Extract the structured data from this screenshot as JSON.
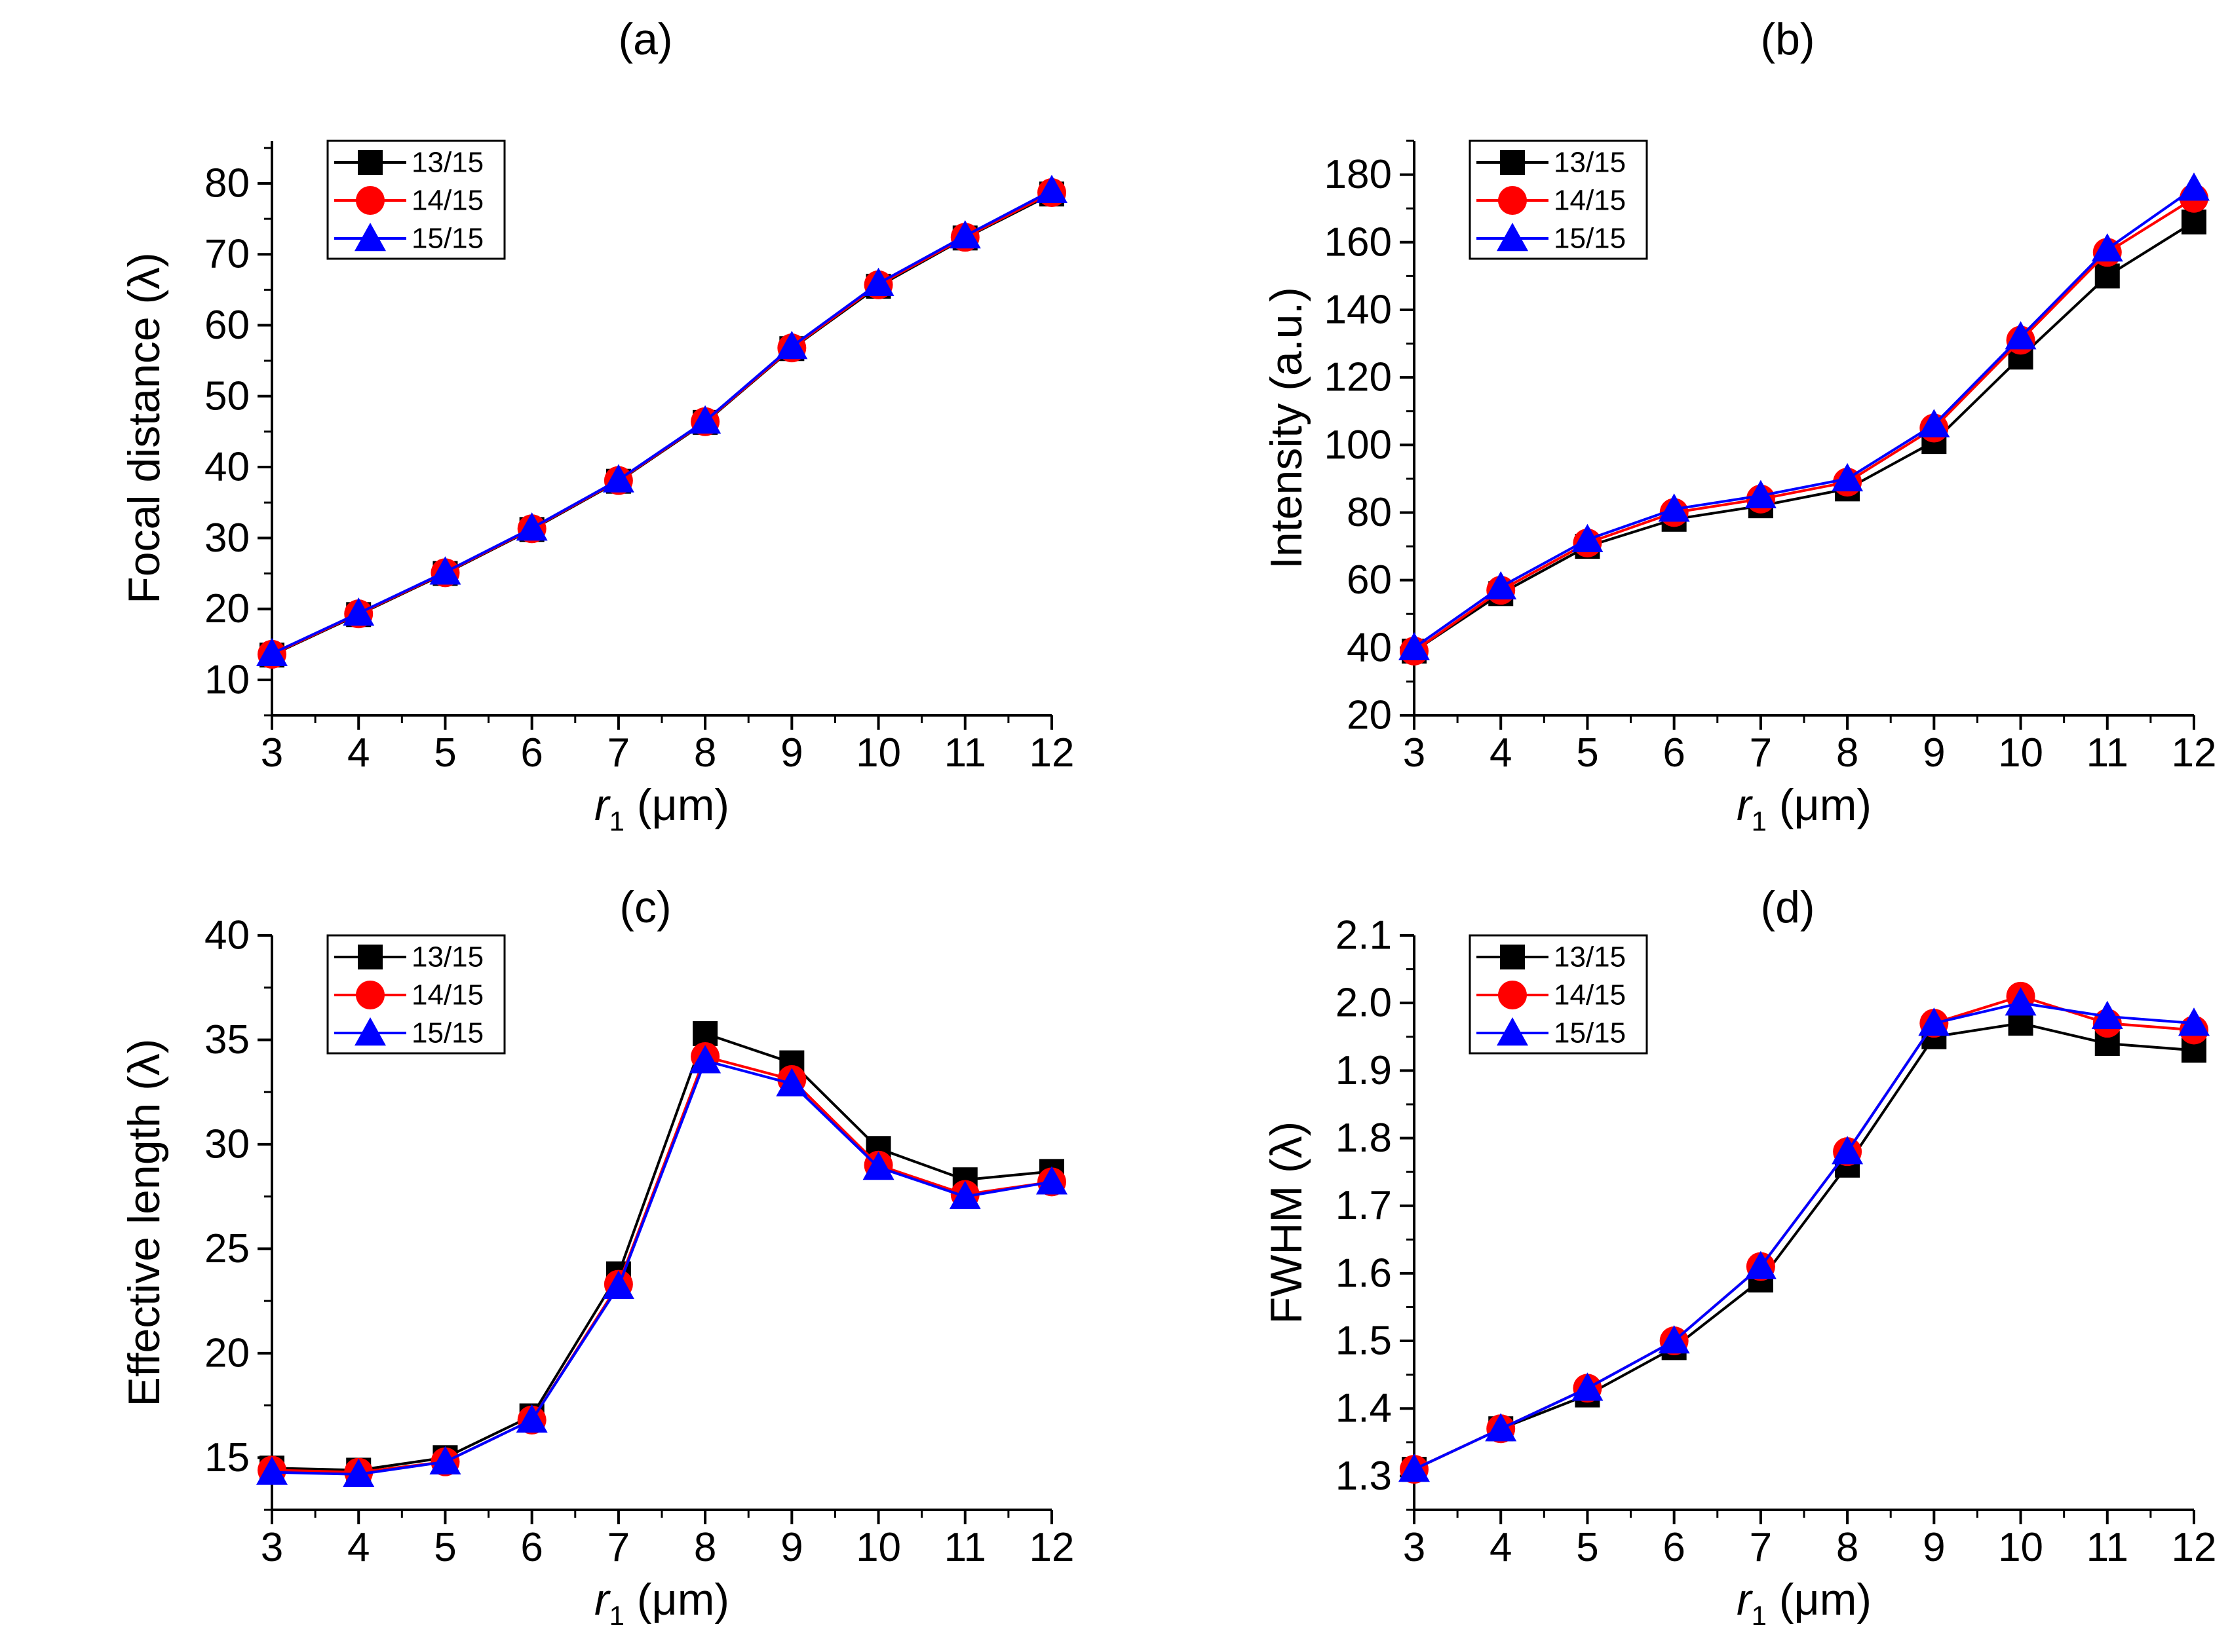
{
  "chart_data": [
    {
      "panel": "(a)",
      "type": "line",
      "xlabel": {
        "var": "r",
        "sub": "1",
        "unit": " (μm)"
      },
      "ylabel": "Focal distance (λ)",
      "xlim": [
        3,
        12
      ],
      "ylim": [
        5,
        86
      ],
      "xticks": [
        3,
        4,
        5,
        6,
        7,
        8,
        9,
        10,
        11,
        12
      ],
      "yticks": [
        10,
        20,
        30,
        40,
        50,
        60,
        70,
        80
      ],
      "grid": false,
      "legend_position": "top-left",
      "x": [
        3,
        4,
        5,
        6,
        7,
        8,
        9,
        10,
        11,
        12
      ],
      "series": [
        {
          "name": "13/15",
          "marker": "square",
          "values": [
            13.5,
            19.2,
            25.0,
            31.2,
            38.0,
            46.3,
            56.7,
            65.5,
            72.3,
            78.5
          ]
        },
        {
          "name": "14/15",
          "marker": "circle",
          "values": [
            13.6,
            19.3,
            25.1,
            31.3,
            38.1,
            46.4,
            56.8,
            65.7,
            72.4,
            78.7
          ]
        },
        {
          "name": "15/15",
          "marker": "triangle",
          "values": [
            13.7,
            19.4,
            25.2,
            31.4,
            38.2,
            46.5,
            57.0,
            65.9,
            72.6,
            79.0
          ]
        }
      ]
    },
    {
      "panel": "(b)",
      "type": "line",
      "xlabel": {
        "var": "r",
        "sub": "1",
        "unit": " (μm)"
      },
      "ylabel": "Intensity (a.u.)",
      "xlim": [
        3,
        12
      ],
      "ylim": [
        20,
        190
      ],
      "xticks": [
        3,
        4,
        5,
        6,
        7,
        8,
        9,
        10,
        11,
        12
      ],
      "yticks": [
        20,
        40,
        60,
        80,
        100,
        120,
        140,
        160,
        180
      ],
      "grid": false,
      "legend_position": "top-left",
      "x": [
        3,
        4,
        5,
        6,
        7,
        8,
        9,
        10,
        11,
        12
      ],
      "series": [
        {
          "name": "13/15",
          "marker": "square",
          "values": [
            39,
            56,
            70,
            78,
            82,
            87,
            101,
            126,
            150,
            166
          ]
        },
        {
          "name": "14/15",
          "marker": "circle",
          "values": [
            39,
            57,
            71,
            80,
            84,
            89,
            105,
            131,
            157,
            173
          ]
        },
        {
          "name": "15/15",
          "marker": "triangle",
          "values": [
            40,
            58,
            72,
            81,
            85,
            90,
            106,
            132,
            158,
            176
          ]
        }
      ]
    },
    {
      "panel": "(c)",
      "type": "line",
      "xlabel": {
        "var": "r",
        "sub": "1",
        "unit": " (μm)"
      },
      "ylabel": "Effective length (λ)",
      "xlim": [
        3,
        12
      ],
      "ylim": [
        12.5,
        40
      ],
      "xticks": [
        3,
        4,
        5,
        6,
        7,
        8,
        9,
        10,
        11,
        12
      ],
      "yticks": [
        15,
        20,
        25,
        30,
        35,
        40
      ],
      "grid": false,
      "legend_position": "top-left",
      "x": [
        3,
        4,
        5,
        6,
        7,
        8,
        9,
        10,
        11,
        12
      ],
      "series": [
        {
          "name": "13/15",
          "marker": "square",
          "values": [
            14.5,
            14.4,
            15.0,
            17.0,
            23.8,
            35.3,
            33.9,
            29.8,
            28.3,
            28.7
          ]
        },
        {
          "name": "14/15",
          "marker": "circle",
          "values": [
            14.4,
            14.3,
            14.8,
            16.8,
            23.3,
            34.2,
            33.1,
            29.0,
            27.6,
            28.2
          ]
        },
        {
          "name": "15/15",
          "marker": "triangle",
          "values": [
            14.3,
            14.2,
            14.8,
            16.8,
            23.2,
            34.0,
            32.9,
            28.9,
            27.5,
            28.2
          ]
        }
      ]
    },
    {
      "panel": "(d)",
      "type": "line",
      "xlabel": {
        "var": "r",
        "sub": "1",
        "unit": " (μm)"
      },
      "ylabel": "FWHM (λ)",
      "xlim": [
        3,
        12
      ],
      "ylim": [
        1.25,
        2.1
      ],
      "xticks": [
        3,
        4,
        5,
        6,
        7,
        8,
        9,
        10,
        11,
        12
      ],
      "yticks": [
        "1.3",
        "1.4",
        "1.5",
        "1.6",
        "1.7",
        "1.8",
        "1.9",
        "2.0",
        "2.1"
      ],
      "grid": false,
      "legend_position": "top-left",
      "x": [
        3,
        4,
        5,
        6,
        7,
        8,
        9,
        10,
        11,
        12
      ],
      "series": [
        {
          "name": "13/15",
          "marker": "square",
          "values": [
            1.31,
            1.37,
            1.42,
            1.49,
            1.59,
            1.76,
            1.95,
            1.97,
            1.94,
            1.93
          ]
        },
        {
          "name": "14/15",
          "marker": "circle",
          "values": [
            1.31,
            1.37,
            1.43,
            1.5,
            1.61,
            1.78,
            1.97,
            2.01,
            1.97,
            1.96
          ]
        },
        {
          "name": "15/15",
          "marker": "triangle",
          "values": [
            1.31,
            1.37,
            1.43,
            1.5,
            1.61,
            1.78,
            1.97,
            2.0,
            1.98,
            1.97
          ]
        }
      ]
    }
  ],
  "colors": {
    "13/15": "#000000",
    "14/15": "#ff0000",
    "15/15": "#0000ff"
  }
}
